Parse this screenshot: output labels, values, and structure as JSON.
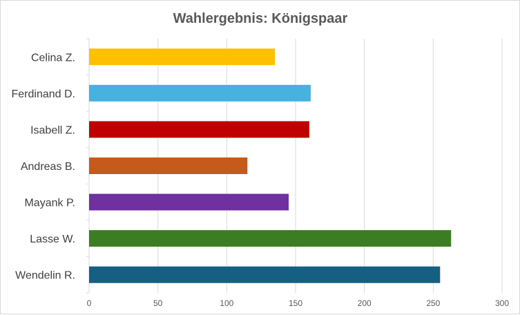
{
  "chart_data": {
    "type": "bar",
    "orientation": "horizontal",
    "title": "Wahlergebnis: Königspaar",
    "categories": [
      "Celina Z.",
      "Ferdinand D.",
      "Isabell Z.",
      "Andreas B.",
      "Mayank P.",
      "Lasse W.",
      "Wendelin R."
    ],
    "values": [
      135,
      161,
      160,
      115,
      145,
      263,
      255
    ],
    "colors": [
      "#FFC000",
      "#47B1E0",
      "#C00000",
      "#C55A1A",
      "#7030A0",
      "#3C7D22",
      "#156082"
    ],
    "xlim": [
      0,
      300
    ],
    "xticks": [
      "0",
      "50",
      "100",
      "150",
      "200",
      "250",
      "300"
    ],
    "grid": true,
    "legend": "none"
  }
}
